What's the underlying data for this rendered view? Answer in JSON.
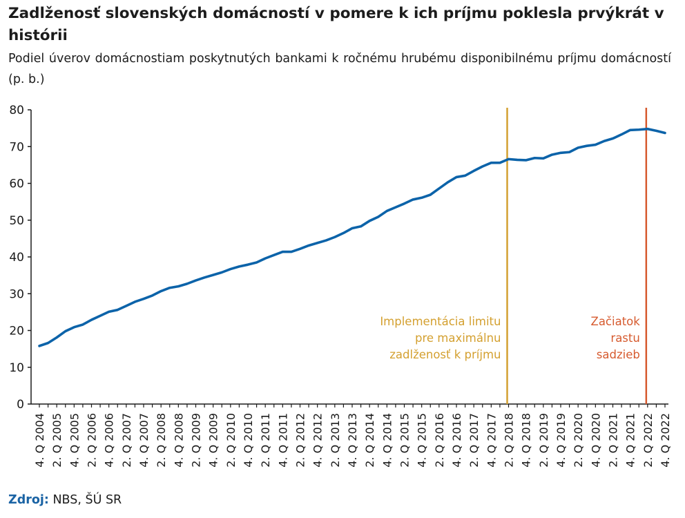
{
  "title": "Zadlženosť slovenských domácností v pomere k ich príjmu poklesla prvýkrát v histórii",
  "subtitle": "Podiel úverov domácnostiam poskytnutých bankami k ročnému hrubému disponibilnému príjmu domácností (p. b.)",
  "source": {
    "label": "Zdroj:",
    "text": " NBS, ŠÚ SR"
  },
  "colors": {
    "series": "#0c63a9",
    "limit_line": "#d4a030",
    "rates_line": "#d65a2e",
    "axis": "#1a1a1a"
  },
  "chart_data": {
    "type": "line",
    "title": "Zadlženosť slovenských domácností v pomere k ich príjmu poklesla prvýkrát v histórii",
    "ylim": [
      0,
      80
    ],
    "yticks": [
      0,
      10,
      20,
      30,
      40,
      50,
      60,
      70,
      80
    ],
    "grid": false,
    "categories": [
      "4. Q 2004",
      "1. Q 2005",
      "2. Q 2005",
      "3. Q 2005",
      "4. Q 2005",
      "1. Q 2006",
      "2. Q 2006",
      "3. Q 2006",
      "4. Q 2006",
      "1. Q 2007",
      "2. Q 2007",
      "3. Q 2007",
      "4. Q 2007",
      "1. Q 2008",
      "2. Q 2008",
      "3. Q 2008",
      "4. Q 2008",
      "1. Q 2009",
      "2. Q 2009",
      "3. Q 2009",
      "4. Q 2009",
      "1. Q 2010",
      "2. Q 2010",
      "3. Q 2010",
      "4. Q 2010",
      "1. Q 2011",
      "2. Q 2011",
      "3. Q 2011",
      "4. Q 2011",
      "1. Q 2012",
      "2. Q 2012",
      "3. Q 2012",
      "4. Q 2012",
      "1. Q 2013",
      "2. Q 2013",
      "3. Q 2013",
      "4. Q 2013",
      "1. Q 2014",
      "2. Q 2014",
      "3. Q 2014",
      "4. Q 2014",
      "1. Q 2015",
      "2. Q 2015",
      "3. Q 2015",
      "4. Q 2015",
      "1. Q 2016",
      "2. Q 2016",
      "3. Q 2016",
      "4. Q 2016",
      "1. Q 2017",
      "2. Q 2017",
      "3. Q 2017",
      "4. Q 2017",
      "1. Q 2018",
      "2. Q 2018",
      "3. Q 2018",
      "4. Q 2018",
      "1. Q 2019",
      "2. Q 2019",
      "3. Q 2019",
      "4. Q 2019",
      "1. Q 2020",
      "2. Q 2020",
      "3. Q 2020",
      "4. Q 2020",
      "1. Q 2021",
      "2. Q 2021",
      "3. Q 2021",
      "4. Q 2021",
      "1. Q 2022",
      "2. Q 2022",
      "3. Q 2022",
      "4. Q 2022"
    ],
    "tick_labels": [
      "4. Q 2004",
      "2. Q 2005",
      "4. Q 2005",
      "2. Q 2006",
      "4. Q 2006",
      "2. Q 2007",
      "4. Q 2007",
      "2. Q 2008",
      "4. Q 2008",
      "2. Q 2009",
      "4. Q 2009",
      "2. Q 2010",
      "4. Q 2010",
      "2. Q 2011",
      "4. Q 2011",
      "2. Q 2012",
      "4. Q 2012",
      "2. Q 2013",
      "4. Q 2013",
      "2. Q 2014",
      "4. Q 2014",
      "2. Q 2015",
      "4. Q 2015",
      "2. Q 2016",
      "4. Q 2016",
      "2. Q 2017",
      "4. Q 2017",
      "2. Q 2018",
      "4. Q 2018",
      "2. Q 2019",
      "4. Q 2019",
      "2. Q 2020",
      "4. Q 2020",
      "2. Q 2021",
      "4. Q 2021",
      "2. Q 2022",
      "4. Q 2022"
    ],
    "series": [
      {
        "values": [
          15.8,
          16.6,
          18.1,
          19.8,
          20.9,
          21.6,
          22.9,
          24.0,
          25.1,
          25.6,
          26.7,
          27.8,
          28.6,
          29.5,
          30.7,
          31.6,
          32.0,
          32.7,
          33.6,
          34.4,
          35.1,
          35.8,
          36.7,
          37.4,
          37.9,
          38.5,
          39.6,
          40.5,
          41.4,
          41.4,
          42.2,
          43.1,
          43.8,
          44.5,
          45.4,
          46.5,
          47.8,
          48.3,
          49.8,
          50.9,
          52.5,
          53.5,
          54.5,
          55.6,
          56.1,
          56.9,
          58.6,
          60.3,
          61.7,
          62.1,
          63.4,
          64.6,
          65.6,
          65.6,
          66.6,
          66.4,
          66.3,
          66.9,
          66.8,
          67.8,
          68.3,
          68.5,
          69.7,
          70.2,
          70.5,
          71.5,
          72.2,
          73.3,
          74.5,
          74.6,
          74.8,
          74.3,
          73.7
        ]
      }
    ],
    "vertical_lines": [
      {
        "at": "2. Q 2018",
        "label_lines": [
          "Implementácia limitu",
          "pre maximálnu",
          "zadlženosť k príjmu"
        ]
      },
      {
        "at": "2. Q 2022",
        "label_lines": [
          "Začiatok",
          "rastu",
          "sadzieb"
        ]
      }
    ]
  }
}
